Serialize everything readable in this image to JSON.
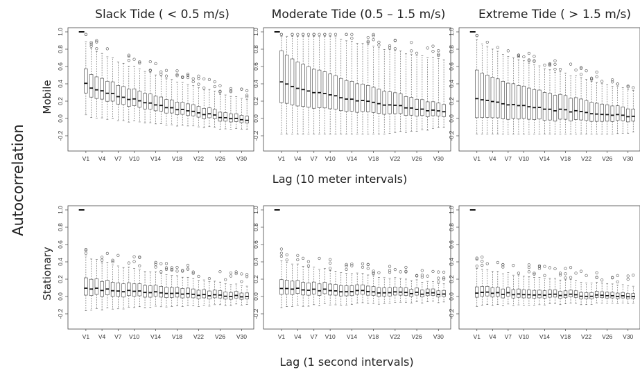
{
  "figure": {
    "column_titles": [
      "Slack Tide ( < 0.5 m/s)",
      "Moderate Tide (0.5 – 1.5 m/s)",
      "Extreme Tide ( > 1.5 m/s)"
    ],
    "ylabel": "Autocorrelation",
    "row_labels": [
      "Mobile",
      "Stationary"
    ],
    "xlabels": [
      "Lag (10 meter intervals)",
      "Lag (1 second intervals)"
    ]
  },
  "chart_data": [
    {
      "type": "box",
      "panel": "mobile-slack",
      "row": "Mobile",
      "column": "Slack Tide ( < 0.5 m/s)",
      "xlabel": "Lag (10 meter intervals)",
      "ylabel": "Autocorrelation",
      "ylim": [
        -0.2,
        1.0
      ],
      "yticks": [
        -0.2,
        0.0,
        0.2,
        0.4,
        0.6,
        0.8,
        1.0
      ],
      "xtick_labels": [
        "V1",
        "V4",
        "V7",
        "V10",
        "V14",
        "V18",
        "V22",
        "V26",
        "V30"
      ],
      "n_boxes": 31,
      "median_start": 0.4,
      "median_end": -0.03,
      "iqr_start": 0.28,
      "iqr_end": 0.08,
      "whisker_start": 0.6,
      "whisker_end": 0.24
    },
    {
      "type": "box",
      "panel": "mobile-moderate",
      "row": "Mobile",
      "column": "Moderate Tide (0.5 – 1.5 m/s)",
      "xlabel": "Lag (10 meter intervals)",
      "ylabel": "Autocorrelation",
      "ylim": [
        -0.2,
        1.0
      ],
      "yticks": [
        -0.2,
        0.0,
        0.2,
        0.4,
        0.6,
        0.8,
        1.0
      ],
      "xtick_labels": [
        "V1",
        "V4",
        "V7",
        "V10",
        "V14",
        "V18",
        "V22",
        "V26",
        "V30"
      ],
      "n_boxes": 31,
      "median_start": 0.42,
      "median_end": 0.07,
      "iqr_start": 0.6,
      "iqr_end": 0.14,
      "whisker_start": 0.88,
      "whisker_end": 0.6
    },
    {
      "type": "box",
      "panel": "mobile-extreme",
      "row": "Mobile",
      "column": "Extreme Tide ( > 1.5 m/s)",
      "xlabel": "Lag (10 meter intervals)",
      "ylabel": "Autocorrelation",
      "ylim": [
        -0.2,
        1.0
      ],
      "yticks": [
        -0.2,
        0.0,
        0.2,
        0.4,
        0.6,
        0.8,
        1.0
      ],
      "xtick_labels": [
        "V1",
        "V4",
        "V7",
        "V10",
        "V14",
        "V18",
        "V22",
        "V26",
        "V30"
      ],
      "n_boxes": 31,
      "median_start": 0.23,
      "median_end": 0.02,
      "iqr_start": 0.55,
      "iqr_end": 0.14,
      "whisker_start": 0.75,
      "whisker_end": 0.3
    },
    {
      "type": "box",
      "panel": "stationary-slack",
      "row": "Stationary",
      "column": "Slack Tide ( < 0.5 m/s)",
      "xlabel": "Lag (1 second intervals)",
      "ylabel": "Autocorrelation",
      "ylim": [
        -0.2,
        1.0
      ],
      "yticks": [
        -0.2,
        0.0,
        0.2,
        0.4,
        0.6,
        0.8,
        1.0
      ],
      "xtick_labels": [
        "V1",
        "V4",
        "V7",
        "V10",
        "V14",
        "V18",
        "V22",
        "V26",
        "V30"
      ],
      "n_boxes": 31,
      "median_start": 0.1,
      "median_end": 0.0,
      "iqr_start": 0.2,
      "iqr_end": 0.07,
      "whisker_start": 0.4,
      "whisker_end": 0.12
    },
    {
      "type": "box",
      "panel": "stationary-moderate",
      "row": "Stationary",
      "column": "Moderate Tide (0.5 – 1.5 m/s)",
      "xlabel": "Lag (1 second intervals)",
      "ylabel": "Autocorrelation",
      "ylim": [
        -0.2,
        1.0
      ],
      "yticks": [
        -0.2,
        0.0,
        0.2,
        0.4,
        0.6,
        0.8,
        1.0
      ],
      "xtick_labels": [
        "V1",
        "V4",
        "V7",
        "V10",
        "V14",
        "V18",
        "V22",
        "V26",
        "V30"
      ],
      "n_boxes": 31,
      "median_start": 0.1,
      "median_end": 0.03,
      "iqr_start": 0.17,
      "iqr_end": 0.07,
      "whisker_start": 0.35,
      "whisker_end": 0.12
    },
    {
      "type": "box",
      "panel": "stationary-extreme",
      "row": "Stationary",
      "column": "Extreme Tide ( > 1.5 m/s)",
      "xlabel": "Lag (1 second intervals)",
      "ylabel": "Autocorrelation",
      "ylim": [
        -0.2,
        1.0
      ],
      "yticks": [
        -0.2,
        0.0,
        0.2,
        0.4,
        0.6,
        0.8,
        1.0
      ],
      "xtick_labels": [
        "V1",
        "V4",
        "V7",
        "V10",
        "V14",
        "V18",
        "V22",
        "V26",
        "V30"
      ],
      "n_boxes": 31,
      "median_start": 0.05,
      "median_end": 0.0,
      "iqr_start": 0.12,
      "iqr_end": 0.06,
      "whisker_start": 0.3,
      "whisker_end": 0.12
    }
  ]
}
